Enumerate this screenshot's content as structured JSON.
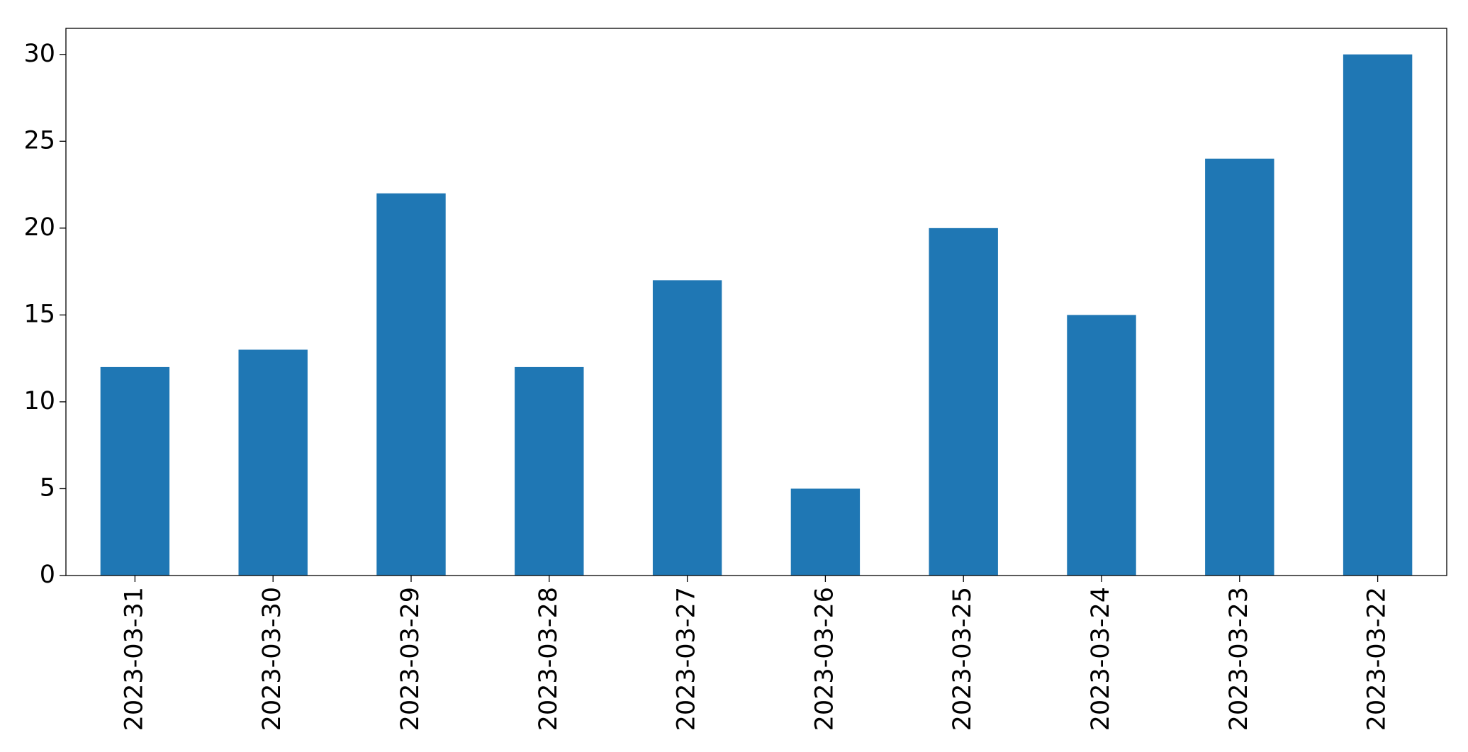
{
  "chart_data": {
    "type": "bar",
    "categories": [
      "2023-03-31",
      "2023-03-30",
      "2023-03-29",
      "2023-03-28",
      "2023-03-27",
      "2023-03-26",
      "2023-03-25",
      "2023-03-24",
      "2023-03-23",
      "2023-03-22"
    ],
    "values": [
      12,
      13,
      22,
      12,
      17,
      5,
      20,
      15,
      24,
      30
    ],
    "color": "#1f77b4",
    "ylim": [
      0,
      31.5
    ],
    "yticks": [
      0,
      5,
      10,
      15,
      20,
      25,
      30
    ],
    "grid": false
  }
}
